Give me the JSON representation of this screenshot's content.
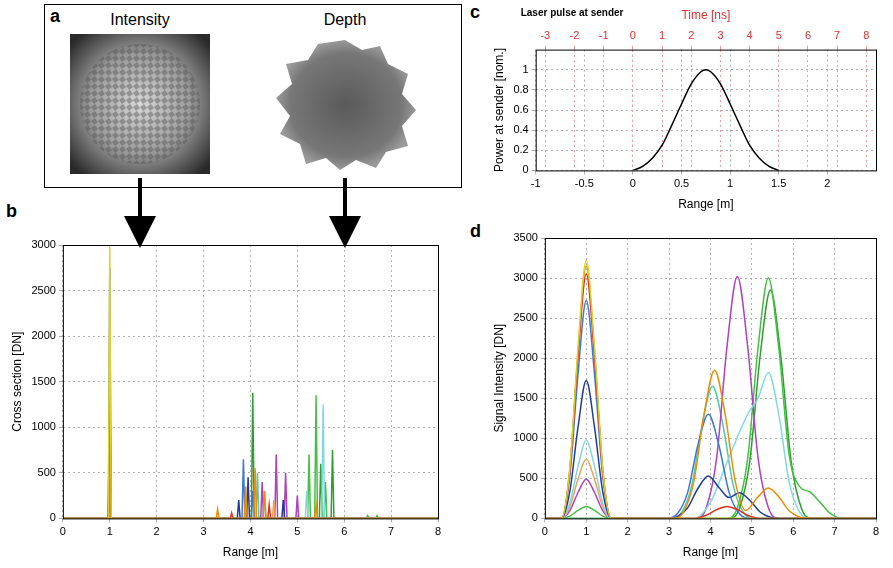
{
  "panel_a": {
    "panel": "a",
    "images": [
      {
        "title": "Intensity"
      },
      {
        "title": "Depth"
      }
    ]
  },
  "chart_data": [
    {
      "panel": "b",
      "type": "line",
      "x_label": "Range [m]",
      "y_label": "Cross section [DN]",
      "xlim": [
        0,
        8
      ],
      "xticks": [
        0,
        1,
        2,
        3,
        4,
        5,
        6,
        7,
        8
      ],
      "ylim": [
        0,
        3000
      ],
      "yticks": [
        0,
        500,
        1000,
        1500,
        2000,
        2500,
        3000
      ],
      "grid": true,
      "series": [
        {
          "color": "#dcd32a",
          "x": [
            0,
            0.97,
            1,
            1.03,
            8
          ],
          "values": [
            0,
            0,
            3000,
            0,
            0
          ]
        },
        {
          "color": "#e03020",
          "x": [
            0,
            0.97,
            1,
            1.03,
            3.57,
            3.6,
            3.63,
            4.37,
            4.4,
            4.43,
            8
          ],
          "values": [
            0,
            0,
            1450,
            0,
            0,
            60,
            0,
            0,
            150,
            0,
            0
          ]
        },
        {
          "color": "#f08c00",
          "x": [
            0,
            0.97,
            1,
            1.03,
            3.27,
            3.3,
            3.33,
            3.87,
            3.9,
            3.93,
            4.07,
            4.1,
            4.13,
            4.27,
            4.3,
            4.33,
            5.37,
            5.4,
            5.43,
            8
          ],
          "values": [
            0,
            0,
            900,
            0,
            0,
            100,
            0,
            0,
            350,
            0,
            0,
            550,
            0,
            0,
            300,
            0,
            0,
            150,
            0,
            0
          ]
        },
        {
          "color": "#3c78d8",
          "x": [
            0,
            0.97,
            1,
            1.03,
            3.82,
            3.85,
            3.88,
            4.02,
            4.05,
            4.08,
            8
          ],
          "values": [
            0,
            0,
            2750,
            0,
            0,
            650,
            0,
            0,
            300,
            0,
            0
          ]
        },
        {
          "color": "#1f3c9c",
          "x": [
            0,
            0.97,
            1,
            1.03,
            3.72,
            3.75,
            3.78,
            3.92,
            3.95,
            3.98,
            4.67,
            4.7,
            4.73,
            8
          ],
          "values": [
            0,
            0,
            1750,
            0,
            0,
            200,
            0,
            0,
            450,
            0,
            0,
            200,
            0,
            0
          ]
        },
        {
          "color": "#80d8e0",
          "x": [
            0,
            0.97,
            1,
            1.03,
            5.17,
            5.2,
            5.23,
            5.52,
            5.55,
            5.58,
            8
          ],
          "values": [
            0,
            0,
            950,
            0,
            0,
            300,
            0,
            0,
            1250,
            0,
            0
          ]
        },
        {
          "color": "#f0a050",
          "x": [
            0,
            0.97,
            1,
            1.03,
            4.47,
            4.5,
            4.53,
            8
          ],
          "values": [
            0,
            0,
            700,
            0,
            0,
            200,
            0,
            0
          ]
        },
        {
          "color": "#b040c0",
          "x": [
            0,
            0.97,
            1,
            1.03,
            4.22,
            4.25,
            4.28,
            4.52,
            4.55,
            4.58,
            4.72,
            4.75,
            4.78,
            4.97,
            5,
            5.03,
            8
          ],
          "values": [
            0,
            0,
            500,
            0,
            0,
            400,
            0,
            0,
            700,
            0,
            0,
            500,
            0,
            0,
            250,
            0,
            0
          ]
        },
        {
          "color": "#44c044",
          "x": [
            0,
            0.97,
            1,
            1.03,
            5.22,
            5.25,
            5.28,
            5.37,
            5.4,
            5.43,
            5.57,
            5.6,
            5.63,
            6.47,
            6.5,
            6.53,
            6.67,
            6.7,
            6.73,
            8
          ],
          "values": [
            0,
            0,
            150,
            0,
            0,
            700,
            0,
            0,
            1350,
            0,
            0,
            400,
            0,
            0,
            30,
            0,
            0,
            30,
            0,
            0
          ]
        },
        {
          "color": "#2ca02c",
          "x": [
            0,
            4.02,
            4.05,
            4.08,
            5.47,
            5.5,
            5.53,
            5.72,
            5.75,
            5.78,
            8
          ],
          "values": [
            0,
            0,
            1380,
            0,
            0,
            600,
            0,
            0,
            750,
            0,
            0
          ]
        },
        {
          "color": "#52c9a8",
          "x": [
            0,
            3.87,
            3.9,
            3.93,
            4.12,
            4.15,
            4.18,
            4.27,
            4.3,
            4.33,
            8
          ],
          "values": [
            0,
            0,
            250,
            0,
            0,
            500,
            0,
            0,
            300,
            0,
            0
          ]
        }
      ]
    },
    {
      "panel": "c",
      "type": "line",
      "annotation": "Laser pulse at sender",
      "x_label": "Range [m]",
      "x2_label": "Time [ns]",
      "y_label": "Power at sender [nom.]",
      "xlim": [
        -1,
        2.5
      ],
      "xticks": [
        -1,
        -0.5,
        0,
        0.5,
        1,
        1.5,
        2
      ],
      "x2lim": [
        -3.33,
        8.33
      ],
      "x2ticks": [
        -3,
        -2,
        -1,
        0,
        1,
        2,
        3,
        4,
        5,
        6,
        7,
        8
      ],
      "ylim": [
        0,
        1.2
      ],
      "yticks": [
        0,
        0.2,
        0.4,
        0.6,
        0.8,
        1
      ],
      "grid": true,
      "series": [
        {
          "color": "#000000",
          "x": [
            0,
            0.1,
            0.2,
            0.3,
            0.4,
            0.5,
            0.6,
            0.7,
            0.75,
            0.8,
            0.9,
            1,
            1.1,
            1.2,
            1.3,
            1.4,
            1.5
          ],
          "values": [
            0,
            0.04,
            0.12,
            0.25,
            0.45,
            0.66,
            0.86,
            0.98,
            1,
            0.98,
            0.86,
            0.66,
            0.45,
            0.25,
            0.12,
            0.04,
            0
          ]
        }
      ]
    },
    {
      "panel": "d",
      "type": "line",
      "x_label": "Range [m]",
      "y_label": "Signal Intensity [DN]",
      "xlim": [
        0,
        8
      ],
      "xticks": [
        0,
        1,
        2,
        3,
        4,
        5,
        6,
        7,
        8
      ],
      "ylim": [
        0,
        3500
      ],
      "yticks": [
        0,
        500,
        1000,
        1500,
        2000,
        2500,
        3000,
        3500
      ],
      "grid": true,
      "series": [
        {
          "color": "#dcd32a",
          "x": [
            0,
            0.4,
            0.6,
            0.8,
            1,
            1.2,
            1.4,
            1.6,
            8
          ],
          "values": [
            0,
            0,
            612,
            2125,
            3220,
            2125,
            612,
            0,
            0
          ]
        },
        {
          "color": "#e03020",
          "x": [
            0,
            0.4,
            0.6,
            0.8,
            1,
            1.2,
            1.4,
            1.6,
            3.6,
            3.9,
            4.15,
            4.4,
            4.65,
            4.9,
            5.2,
            8
          ],
          "values": [
            0,
            0,
            580,
            2013,
            3050,
            2013,
            580,
            0,
            0,
            40,
            110,
            150,
            110,
            40,
            0,
            0
          ]
        },
        {
          "color": "#f08c00",
          "x": [
            0,
            0.4,
            0.6,
            0.8,
            1,
            1.2,
            1.4,
            1.6,
            3.1,
            3.35,
            3.6,
            3.85,
            4.1,
            4.35,
            4.6,
            4.85,
            5.15,
            5.4,
            5.65,
            5.9,
            6.15,
            6.4,
            8
          ],
          "values": [
            0,
            0,
            599,
            2079,
            3150,
            2079,
            599,
            0,
            0,
            81,
            463,
            1314,
            1850,
            1314,
            463,
            100,
            270,
            380,
            270,
            95,
            17,
            0,
            0
          ]
        },
        {
          "color": "#3c78d8",
          "x": [
            0,
            0.4,
            0.6,
            0.8,
            1,
            1.2,
            1.4,
            1.6,
            2.95,
            3.2,
            3.45,
            3.7,
            3.95,
            4.2,
            4.45,
            4.7,
            4.95,
            8
          ],
          "values": [
            0,
            0,
            517,
            1795,
            2720,
            1795,
            517,
            0,
            0,
            57,
            325,
            923,
            1300,
            923,
            325,
            57,
            0,
            0
          ]
        },
        {
          "color": "#1f3c9c",
          "x": [
            0,
            0.4,
            0.6,
            0.8,
            1,
            1.2,
            1.4,
            1.6,
            2.95,
            3.2,
            3.45,
            3.7,
            3.95,
            4.2,
            4.45,
            4.7,
            4.95,
            5.2,
            5.45,
            5.7,
            8
          ],
          "values": [
            0,
            0,
            327,
            1135,
            1720,
            1135,
            327,
            0,
            0,
            23,
            133,
            376,
            530,
            390,
            260,
            320,
            227,
            80,
            14,
            0,
            0
          ]
        },
        {
          "color": "#80d8e0",
          "x": [
            0,
            0.4,
            0.6,
            0.8,
            1,
            1.2,
            1.4,
            1.6,
            3.6,
            4,
            4.4,
            4.9,
            5.15,
            5.4,
            5.65,
            5.9,
            6.15,
            6.4,
            8
          ],
          "values": [
            0,
            0,
            186,
            647,
            980,
            647,
            186,
            0,
            0,
            200,
            700,
            1300,
            1500,
            1820,
            1300,
            460,
            80,
            0,
            0
          ]
        },
        {
          "color": "#f0a050",
          "x": [
            0,
            0.4,
            0.6,
            0.8,
            1,
            1.2,
            1.4,
            1.6,
            8
          ],
          "values": [
            0,
            0,
            141,
            488,
            740,
            488,
            141,
            0,
            0
          ]
        },
        {
          "color": "#b040c0",
          "x": [
            0,
            0.4,
            0.6,
            0.8,
            1,
            1.2,
            1.4,
            1.6,
            3.65,
            3.9,
            4.15,
            4.4,
            4.65,
            4.9,
            5.15,
            5.4,
            5.65,
            8
          ],
          "values": [
            0,
            0,
            93,
            323,
            490,
            323,
            93,
            0,
            0,
            133,
            755,
            2144,
            3020,
            2144,
            755,
            133,
            0,
            0
          ]
        },
        {
          "color": "#44c044",
          "x": [
            0,
            0.4,
            0.6,
            0.8,
            1,
            1.2,
            1.4,
            1.6,
            4.4,
            4.65,
            4.9,
            5.15,
            5.4,
            5.65,
            5.9,
            6.15,
            6.4,
            6.65,
            6.9,
            7.2,
            8
          ],
          "values": [
            0,
            0,
            29,
            99,
            150,
            99,
            29,
            0,
            0,
            132,
            750,
            2130,
            3000,
            2130,
            800,
            400,
            330,
            200,
            60,
            0,
            0
          ]
        },
        {
          "color": "#2ca02c",
          "x": [
            0,
            4.45,
            4.7,
            4.95,
            5.2,
            5.45,
            5.7,
            5.95,
            6.2,
            6.45,
            8
          ],
          "values": [
            0,
            0,
            125,
            712,
            2024,
            2850,
            2024,
            712,
            125,
            0,
            0
          ]
        },
        {
          "color": "#52c9a8",
          "x": [
            0,
            3.05,
            3.3,
            3.55,
            3.8,
            4.05,
            4.3,
            4.55,
            4.8,
            5.05,
            8
          ],
          "values": [
            0,
            0,
            73,
            413,
            1172,
            1650,
            1172,
            413,
            73,
            0,
            0
          ]
        }
      ]
    }
  ]
}
